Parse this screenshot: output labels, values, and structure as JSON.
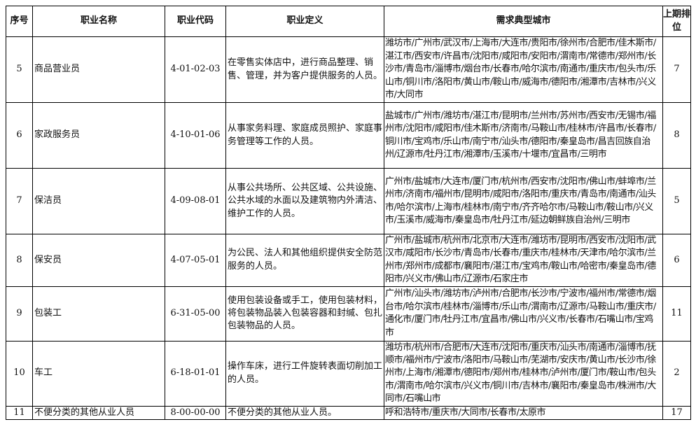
{
  "headers": {
    "no": "序号",
    "name": "职业名称",
    "code": "职业代码",
    "def": "职业定义",
    "cities": "需求典型城市",
    "prev": "上期排位"
  },
  "rows": [
    {
      "no": "5",
      "name": "商品营业员",
      "code": "4-01-02-03",
      "def": "在零售实体店中，进行商品整理、销售、管理，并为客户提供服务的人员。",
      "cities": "潍坊市/广州市/武汉市/上海市/大连市/贵阳市/徐州市/合肥市/佳木斯市/湛江市/西安市/许昌市/沈阳市/咸阳市/安阳市/渭南市/常德市/郑州市/长沙市/青岛市/淄博市/烟台市/长春市/哈尔滨市/南通市/重庆市/包头市/乐山市/铜川市/洛阳市/黄山市/鞍山市/威海市/德阳市/湘潭市/吉林市/兴义市/大同市",
      "prev": "7"
    },
    {
      "no": "6",
      "name": "家政服务员",
      "code": "4-10-01-06",
      "def": "从事家务料理、家庭成员照护、家庭事务管理等工作的人员。",
      "cities": "盐城市/广州市/潍坊市/湛江市/昆明市/兰州市/苏州市/西安市/无锡市/福州市/沈阳市/咸阳市/佳木斯市/济南市/马鞍山市/桂林市/许昌市/长春市/铜川市/宝鸡市/乐山市/南宁市/汕头市/德阳市/秦皇岛市/昌吉回族自治州/辽源市/牡丹江市/湘潭市/玉溪市/十堰市/宜昌市/三明市",
      "prev": "8"
    },
    {
      "no": "7",
      "name": "保洁员",
      "code": "4-09-08-01",
      "def": "从事公共场所、公共区域、公共设施、公共水域的水面以及建筑物内外清洁、维护工作的人员。",
      "cities": "广州市/盐城市/大连市/厦门市/杭州市/西安市/沈阳市/佛山市/蚌埠市/兰州市/济南市/福州市/昆明市/咸阳市/洛阳市/重庆市/青岛市/南通市/汕头市/哈尔滨市/上海市/桂林市/南宁市/齐齐哈尔市/马鞍山市/鞍山市/兴义市/玉溪市/威海市/秦皇岛市/牡丹江市/延边朝鲜族自治州/三明市",
      "prev": "5"
    },
    {
      "no": "8",
      "name": "保安员",
      "code": "4-07-05-01",
      "def": "为公民、法人和其他组织提供安全防范服务的人员。",
      "cities": "广州市/盐城市/杭州市/北京市/大连市/潍坊市/昆明市/西安市/沈阳市/武汉市/咸阳市/长沙市/青岛市/长春市/重庆市/桂林市/天津市/哈尔滨市/兰州市/郑州市/成都市/襄阳市/湛江市/宝鸡市/鞍山市/哈密市/秦皇岛市/德阳市/兴义市/佛山市/辽源市/石家庄市",
      "prev": "6"
    },
    {
      "no": "9",
      "name": "包装工",
      "code": "6-31-05-00",
      "def": "使用包装设备或手工，使用包装材料，将包装物品装入包装容器和封缄、包扎包装物品的人员。",
      "cities": "广州市/汕头市/潍坊市/泸州市/合肥市/长沙市/宁波市/福州市/常德市/烟台市/哈尔滨市/桂林市/淄博市/乐山市/渭南市/辽源市/马鞍山市/重庆市/通化市/厦门市/牡丹江市/宜昌市/佛山市/兴义市/长春市/石嘴山市/宝鸡市",
      "prev": "11"
    },
    {
      "no": "10",
      "name": "车工",
      "code": "6-18-01-01",
      "def": "操作车床，进行工件旋转表面切削加工的人员。",
      "cities": "潍坊市/杭州市/合肥市/大连市/沈阳市/重庆市/汕头市/南通市/淄博市/抚顺市/福州市/宁波市/洛阳市/马鞍山市/芜湖市/安庆市/黄山市/长沙市/徐州市/上海市/湘潭市/德阳市/郑州市/桂林市/泸州市/厦门市/鞍山市/包头市/渭南市/哈尔滨市/兴义市/铜川市/吉林市/襄阳市/秦皇岛市/株洲市/大同市/石嘴山市",
      "prev": "2"
    },
    {
      "no": "11",
      "name": "不便分类的其他从业人员",
      "code": "8-00-00-00",
      "def": "不便分类的其他从业人员。",
      "cities": "呼和浩特市/重庆市/大同市/长春市/太原市",
      "prev": "17"
    }
  ]
}
